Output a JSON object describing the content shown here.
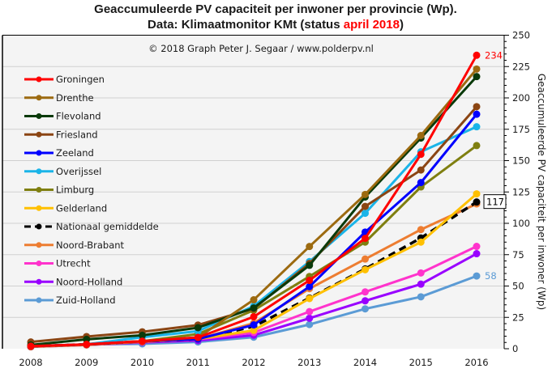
{
  "chart_data": {
    "type": "line",
    "title_line1": "Geaccumuleerde PV capaciteit per inwoner per provincie (Wp).",
    "title_line2_prefix": "Data: Klimaatmonitor KMt (status ",
    "title_line2_highlight": "april 2018",
    "title_line2_suffix": ")",
    "copyright": "© 2018 Graph Peter J. Segaar / www.polderpv.nl",
    "xlabel": "",
    "ylabel": "Geaccumuleerde PV capaciteit per inwoner (Wp)",
    "x": [
      "2008",
      "2009",
      "2010",
      "2011",
      "2012",
      "2013",
      "2014",
      "2015",
      "2016"
    ],
    "ylim": [
      0,
      250
    ],
    "yticks": [
      0,
      25,
      50,
      75,
      100,
      125,
      150,
      175,
      200,
      225,
      250
    ],
    "y_minor_step": 5,
    "grid": true,
    "y_axis_side": "right",
    "legend_position": "top-left",
    "series": [
      {
        "name": "Groningen",
        "color": "#ff0000",
        "dashed": false,
        "values": [
          2,
          3.5,
          6,
          9,
          25.5,
          54.5,
          88,
          155,
          234
        ],
        "end_label": "234"
      },
      {
        "name": "Drenthe",
        "color": "#9c6a10",
        "dashed": false,
        "values": [
          2,
          3.5,
          6,
          9,
          39,
          81.5,
          123,
          170,
          223
        ]
      },
      {
        "name": "Flevoland",
        "color": "#0a3a0a",
        "dashed": false,
        "values": [
          3,
          7.5,
          10.7,
          16.8,
          32.5,
          66.5,
          121,
          168,
          217
        ]
      },
      {
        "name": "Friesland",
        "color": "#8b4513",
        "dashed": false,
        "values": [
          5.4,
          9.7,
          13.5,
          18.9,
          32,
          68,
          113.5,
          142.5,
          193
        ]
      },
      {
        "name": "Zeeland",
        "color": "#0000ff",
        "dashed": false,
        "values": [
          2,
          3.5,
          6,
          7.7,
          19,
          49.5,
          93,
          132.5,
          187
        ]
      },
      {
        "name": "Overijssel",
        "color": "#1ab4e8",
        "dashed": false,
        "values": [
          2,
          3.5,
          9.2,
          14,
          34,
          69.5,
          108,
          157,
          177
        ]
      },
      {
        "name": "Limburg",
        "color": "#7f7f10",
        "dashed": false,
        "values": [
          2,
          3.5,
          6,
          11.7,
          30.7,
          57.6,
          85,
          129,
          162
        ]
      },
      {
        "name": "Gelderland",
        "color": "#ffc000",
        "dashed": false,
        "values": [
          2,
          3.5,
          6,
          7.7,
          14.6,
          40,
          63,
          85,
          123.5
        ]
      },
      {
        "name": "Nationaal gemiddelde",
        "color": "#000000",
        "dashed": true,
        "values": [
          2,
          3.5,
          6,
          7.7,
          17.8,
          40.4,
          63.6,
          88.3,
          117
        ],
        "end_label": "117"
      },
      {
        "name": "Noord-Brabant",
        "color": "#ed7d31",
        "dashed": false,
        "values": [
          1.5,
          3,
          5.5,
          7.7,
          20.4,
          47.9,
          71.5,
          95,
          115.5
        ]
      },
      {
        "name": "Utrecht",
        "color": "#ff33cc",
        "dashed": false,
        "values": [
          2,
          3.5,
          5.5,
          7.5,
          12.9,
          29.6,
          45.3,
          60.4,
          81.6
        ]
      },
      {
        "name": "Noord-Holland",
        "color": "#9900ff",
        "dashed": false,
        "values": [
          1.5,
          3,
          5,
          6.5,
          10.8,
          24.3,
          38.2,
          51.5,
          75.8
        ]
      },
      {
        "name": "Zuid-Holland",
        "color": "#5b9bd5",
        "dashed": false,
        "values": [
          2,
          3.5,
          3.9,
          5.4,
          9.2,
          19.3,
          31.8,
          41.4,
          58
        ],
        "end_label": "58"
      }
    ]
  }
}
